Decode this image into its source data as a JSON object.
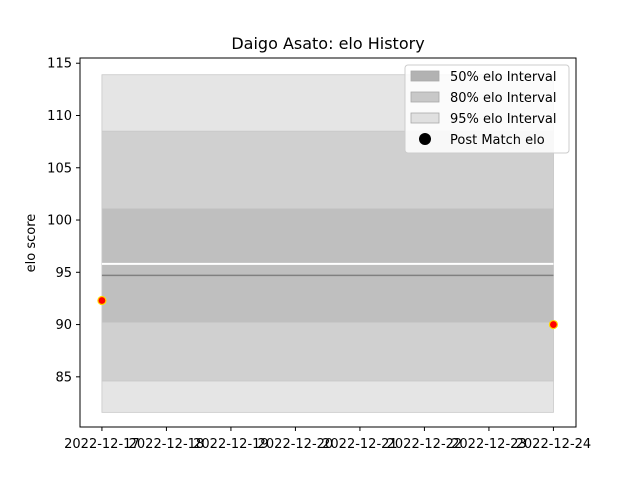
{
  "chart_data": {
    "type": "line",
    "title": "Daigo Asato: elo History",
    "xlabel": "",
    "ylabel": "elo score",
    "x_ticks": [
      "2022-12-17",
      "2022-12-18",
      "2022-12-19",
      "2022-12-20",
      "2022-12-21",
      "2022-12-22",
      "2022-12-23",
      "2022-12-24"
    ],
    "x_range": [
      "2022-12-16.66",
      "2022-12-24.35"
    ],
    "ylim": [
      80.2,
      115.5
    ],
    "y_ticks": [
      85,
      90,
      95,
      100,
      105,
      110,
      115
    ],
    "grid": false,
    "legend_placement": "top-right",
    "intervals": [
      {
        "label": "95% elo Interval",
        "low": 81.6,
        "high": 113.9,
        "color": "#e5e5e5"
      },
      {
        "label": "80% elo Interval",
        "low": 84.6,
        "high": 108.5,
        "color": "#d0d0d0"
      },
      {
        "label": "50% elo Interval",
        "low": 90.2,
        "high": 101.1,
        "color": "#bfbfbf"
      }
    ],
    "mean_line": {
      "y": 94.7,
      "color": "#808080"
    },
    "white_line": {
      "y": 95.8
    },
    "x_start": "2022-12-17",
    "x_end": "2022-12-24",
    "points": [
      {
        "x": "2022-12-17",
        "y": 92.3
      },
      {
        "x": "2022-12-24",
        "y": 90.0
      }
    ],
    "legend": [
      {
        "label": "50% elo Interval",
        "kind": "patch",
        "color": "#b2b2b2"
      },
      {
        "label": "80% elo Interval",
        "kind": "patch",
        "color": "#c8c8c8"
      },
      {
        "label": "95% elo Interval",
        "kind": "patch",
        "color": "#e0e0e0"
      },
      {
        "label": "Post Match elo",
        "kind": "marker",
        "color": "#000000"
      }
    ],
    "point_fill": "#ff0000",
    "point_edge": "#ffd700"
  }
}
